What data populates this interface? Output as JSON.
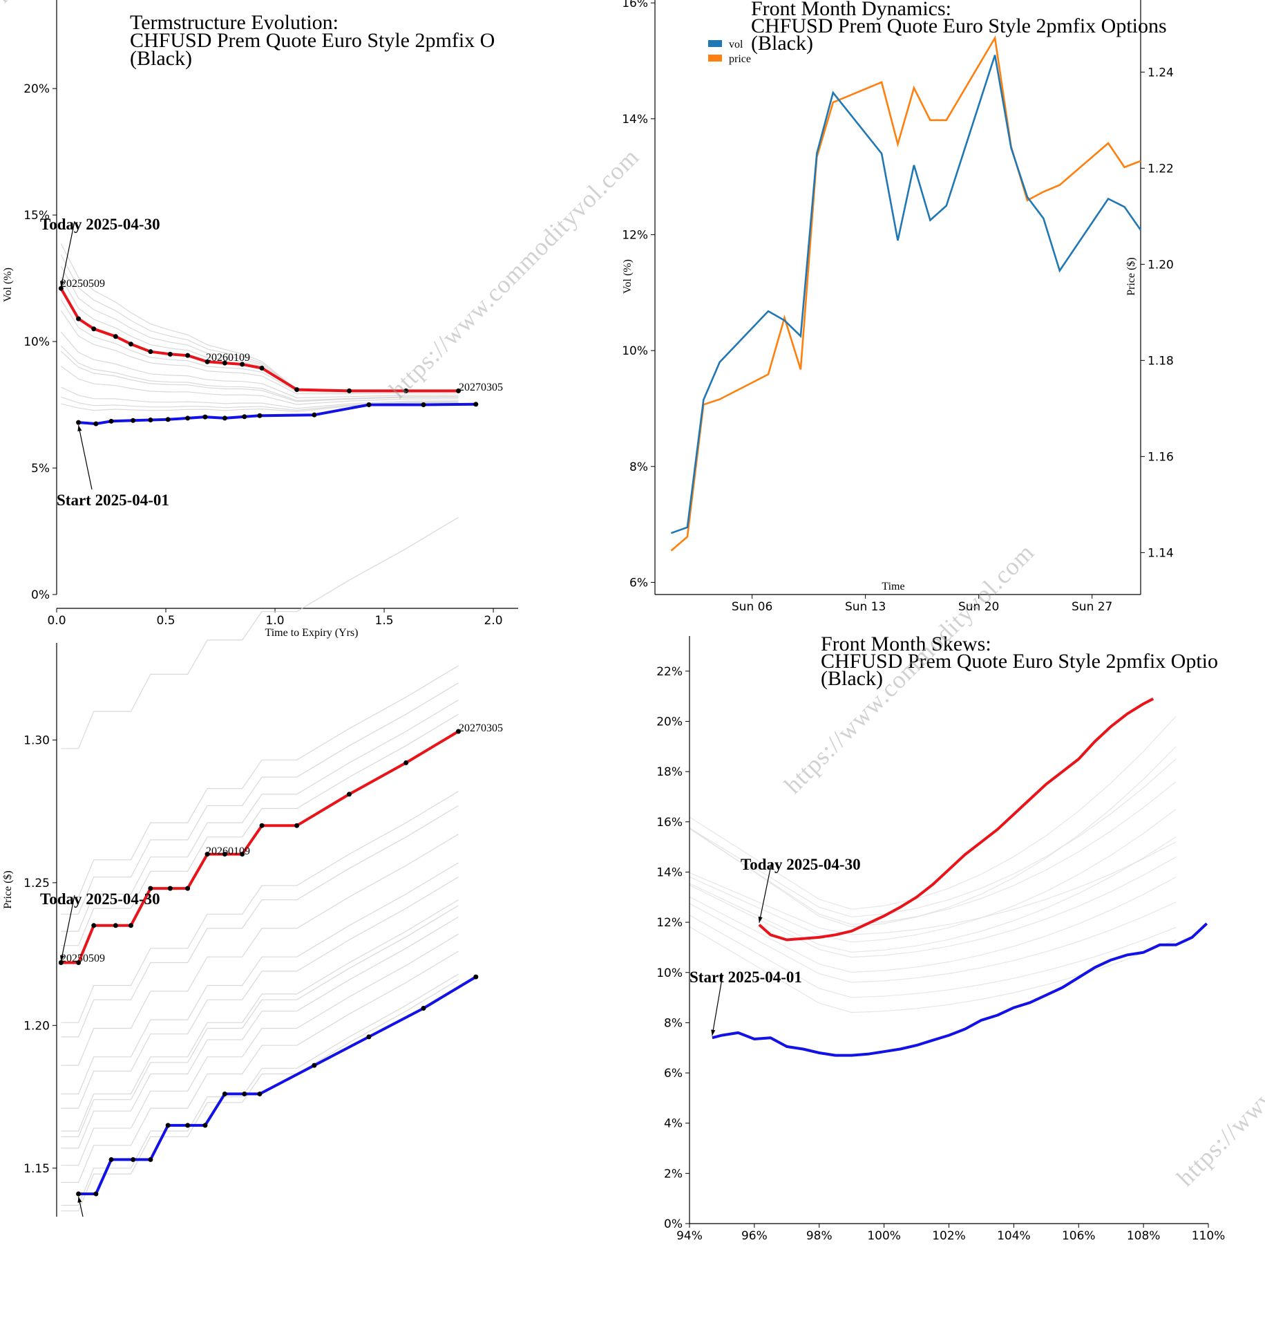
{
  "watermark": "https://www.commodityvol.com",
  "colors": {
    "red": "#e8141a",
    "blue": "#1212e6",
    "grey": "#cfcfcf",
    "vol": "#1f77b4",
    "price": "#ff7f0e"
  },
  "panels": {
    "termstructure": {
      "title": [
        "Termstructure Evolution:",
        "CHFUSD Prem Quote Euro Style 2pmfix O",
        "(Black)"
      ],
      "today_label": "Today 2025-04-30",
      "start_label": "Start 2025-04-01",
      "point_labels": [
        "20250509",
        "20260109",
        "20270305"
      ]
    },
    "dynamics": {
      "title": [
        "Front Month Dynamics:",
        "CHFUSD Prem Quote Euro Style 2pmfix Options",
        "(Black)"
      ],
      "legend": [
        "vol",
        "price"
      ]
    },
    "pricecurve": {
      "today_label": "Today 2025-04-30",
      "point_labels": [
        "20250509",
        "20260109",
        "20270305"
      ]
    },
    "skews": {
      "title": [
        "Front Month Skews:",
        "CHFUSD Prem Quote Euro Style 2pmfix Optio",
        "(Black)"
      ],
      "today_label": "Today 2025-04-30",
      "start_label": "Start 2025-04-01"
    }
  },
  "chart_data": [
    {
      "type": "line",
      "title": "Termstructure Evolution: CHFUSD Prem Quote Euro Style 2pmfix O (Black)",
      "xlabel": "Time to Expiry (Yrs)",
      "ylabel": "Vol (%)",
      "xlim": [
        0,
        2.12
      ],
      "ylim": [
        0,
        23.5
      ],
      "xticks": [
        "0.0",
        "0.5",
        "1.0",
        "1.5",
        "2.0"
      ],
      "yticks": [
        "0%",
        "5%",
        "10%",
        "15%",
        "20%"
      ],
      "series": [
        {
          "name": "Today 2025-04-30",
          "x": [
            0.02,
            0.1,
            0.17,
            0.27,
            0.34,
            0.43,
            0.52,
            0.6,
            0.69,
            0.77,
            0.85,
            0.94,
            1.1,
            1.34,
            1.6,
            1.84
          ],
          "y": [
            12.1,
            10.9,
            10.5,
            10.2,
            9.9,
            9.6,
            9.5,
            9.45,
            9.2,
            9.15,
            9.1,
            8.95,
            8.1,
            8.05,
            8.05,
            8.05
          ]
        },
        {
          "name": "Start 2025-04-01",
          "x": [
            0.1,
            0.18,
            0.25,
            0.35,
            0.43,
            0.51,
            0.6,
            0.68,
            0.77,
            0.86,
            0.93,
            1.18,
            1.43,
            1.68,
            1.92
          ],
          "y": [
            6.8,
            6.75,
            6.85,
            6.88,
            6.9,
            6.92,
            6.97,
            7.02,
            6.97,
            7.03,
            7.07,
            7.1,
            7.5,
            7.5,
            7.52
          ]
        }
      ]
    },
    {
      "type": "line",
      "title": "Front Month Dynamics: CHFUSD Prem Quote Euro Style 2pmfix Options (Black)",
      "xlabel": "Time",
      "ylabel": "Vol (%)",
      "ylabel2": "Price ($)",
      "xlim": [
        "2025-03-31",
        "2025-04-30"
      ],
      "xticks": [
        "Sun 06",
        "Sun 13",
        "Sun 20",
        "Sun 27"
      ],
      "ylim": [
        5.85,
        16.05
      ],
      "yticks": [
        "6%",
        "8%",
        "10%",
        "12%",
        "14%",
        "16%"
      ],
      "y2lim": [
        1.132,
        1.255
      ],
      "y2ticks": [
        "1.14",
        "1.16",
        "1.18",
        "1.20",
        "1.22",
        "1.24"
      ],
      "x": [
        "2025-04-01",
        "2025-04-02",
        "2025-04-03",
        "2025-04-04",
        "2025-04-07",
        "2025-04-08",
        "2025-04-09",
        "2025-04-10",
        "2025-04-11",
        "2025-04-14",
        "2025-04-15",
        "2025-04-16",
        "2025-04-17",
        "2025-04-18",
        "2025-04-21",
        "2025-04-22",
        "2025-04-23",
        "2025-04-24",
        "2025-04-25",
        "2025-04-28",
        "2025-04-29",
        "2025-04-30"
      ],
      "series": [
        {
          "name": "vol",
          "values": [
            6.85,
            6.95,
            9.15,
            9.8,
            10.68,
            10.52,
            10.25,
            13.4,
            14.45,
            13.4,
            11.9,
            13.2,
            12.25,
            12.5,
            15.1,
            13.5,
            12.65,
            12.28,
            11.38,
            12.62,
            12.48,
            12.08
          ]
        },
        {
          "name": "price",
          "values": [
            1.1404,
            1.1433,
            1.1708,
            1.1719,
            1.1771,
            1.1889,
            1.1781,
            1.2223,
            1.2337,
            1.2379,
            1.225,
            1.2367,
            1.23,
            1.23,
            1.2471,
            1.2245,
            1.2133,
            1.2151,
            1.2165,
            1.2252,
            1.2202,
            1.2215
          ]
        }
      ]
    },
    {
      "type": "line",
      "title": "",
      "xlabel": "",
      "ylabel": "Price ($)",
      "xlim": [
        0,
        2.12
      ],
      "ylim": [
        1.133,
        1.334
      ],
      "yticks": [
        "1.15",
        "1.20",
        "1.25",
        "1.30"
      ],
      "series": [
        {
          "name": "Today 2025-04-30",
          "x": [
            0.02,
            0.1,
            0.17,
            0.27,
            0.34,
            0.43,
            0.52,
            0.6,
            0.69,
            0.77,
            0.85,
            0.94,
            1.1,
            1.34,
            1.6,
            1.84
          ],
          "y": [
            1.222,
            1.222,
            1.235,
            1.235,
            1.235,
            1.248,
            1.248,
            1.248,
            1.26,
            1.26,
            1.26,
            1.27,
            1.27,
            1.281,
            1.292,
            1.303
          ]
        },
        {
          "name": "Start 2025-04-01",
          "x": [
            0.1,
            0.18,
            0.25,
            0.35,
            0.43,
            0.51,
            0.6,
            0.68,
            0.77,
            0.86,
            0.93,
            1.18,
            1.43,
            1.68,
            1.92
          ],
          "y": [
            1.141,
            1.141,
            1.153,
            1.153,
            1.153,
            1.165,
            1.165,
            1.165,
            1.176,
            1.176,
            1.176,
            1.186,
            1.196,
            1.206,
            1.217
          ]
        }
      ]
    },
    {
      "type": "line",
      "title": "Front Month Skews: CHFUSD Prem Quote Euro Style 2pmfix Optio (Black)",
      "xlabel": "",
      "ylabel": "",
      "xlim": [
        94,
        110
      ],
      "ylim": [
        0,
        23.4
      ],
      "xticks": [
        "94%",
        "96%",
        "98%",
        "100%",
        "102%",
        "104%",
        "106%",
        "108%",
        "110%"
      ],
      "yticks": [
        "0%",
        "2%",
        "4%",
        "6%",
        "8%",
        "10%",
        "12%",
        "14%",
        "16%",
        "18%",
        "20%",
        "22%"
      ],
      "series": [
        {
          "name": "Today 2025-04-30",
          "x": [
            96.15,
            96.5,
            97.0,
            97.5,
            98.0,
            98.5,
            99.0,
            99.5,
            100.0,
            100.5,
            101.0,
            101.5,
            102.0,
            102.5,
            103.0,
            103.5,
            104.0,
            104.5,
            105.0,
            105.5,
            106.0,
            106.5,
            107.0,
            107.5,
            108.0,
            108.3
          ],
          "y": [
            11.9,
            11.5,
            11.3,
            11.35,
            11.4,
            11.5,
            11.65,
            11.95,
            12.25,
            12.6,
            13.0,
            13.5,
            14.1,
            14.7,
            15.2,
            15.7,
            16.3,
            16.9,
            17.5,
            18.0,
            18.5,
            19.2,
            19.8,
            20.3,
            20.7,
            20.9
          ]
        },
        {
          "name": "Start 2025-04-01",
          "x": [
            94.7,
            95.0,
            95.5,
            96.0,
            96.5,
            97.0,
            97.5,
            98.0,
            98.5,
            99.0,
            99.5,
            100.0,
            100.5,
            101.0,
            101.5,
            102.0,
            102.5,
            103.0,
            103.5,
            104.0,
            104.5,
            105.0,
            105.5,
            106.0,
            106.5,
            107.0,
            107.5,
            108.0,
            108.5,
            109.0,
            109.5,
            109.95
          ],
          "y": [
            7.4,
            7.5,
            7.6,
            7.35,
            7.4,
            7.05,
            6.95,
            6.8,
            6.7,
            6.7,
            6.75,
            6.85,
            6.95,
            7.1,
            7.3,
            7.5,
            7.75,
            8.1,
            8.3,
            8.6,
            8.8,
            9.1,
            9.4,
            9.8,
            10.2,
            10.5,
            10.7,
            10.8,
            11.1,
            11.1,
            11.4,
            11.95
          ]
        }
      ]
    }
  ]
}
